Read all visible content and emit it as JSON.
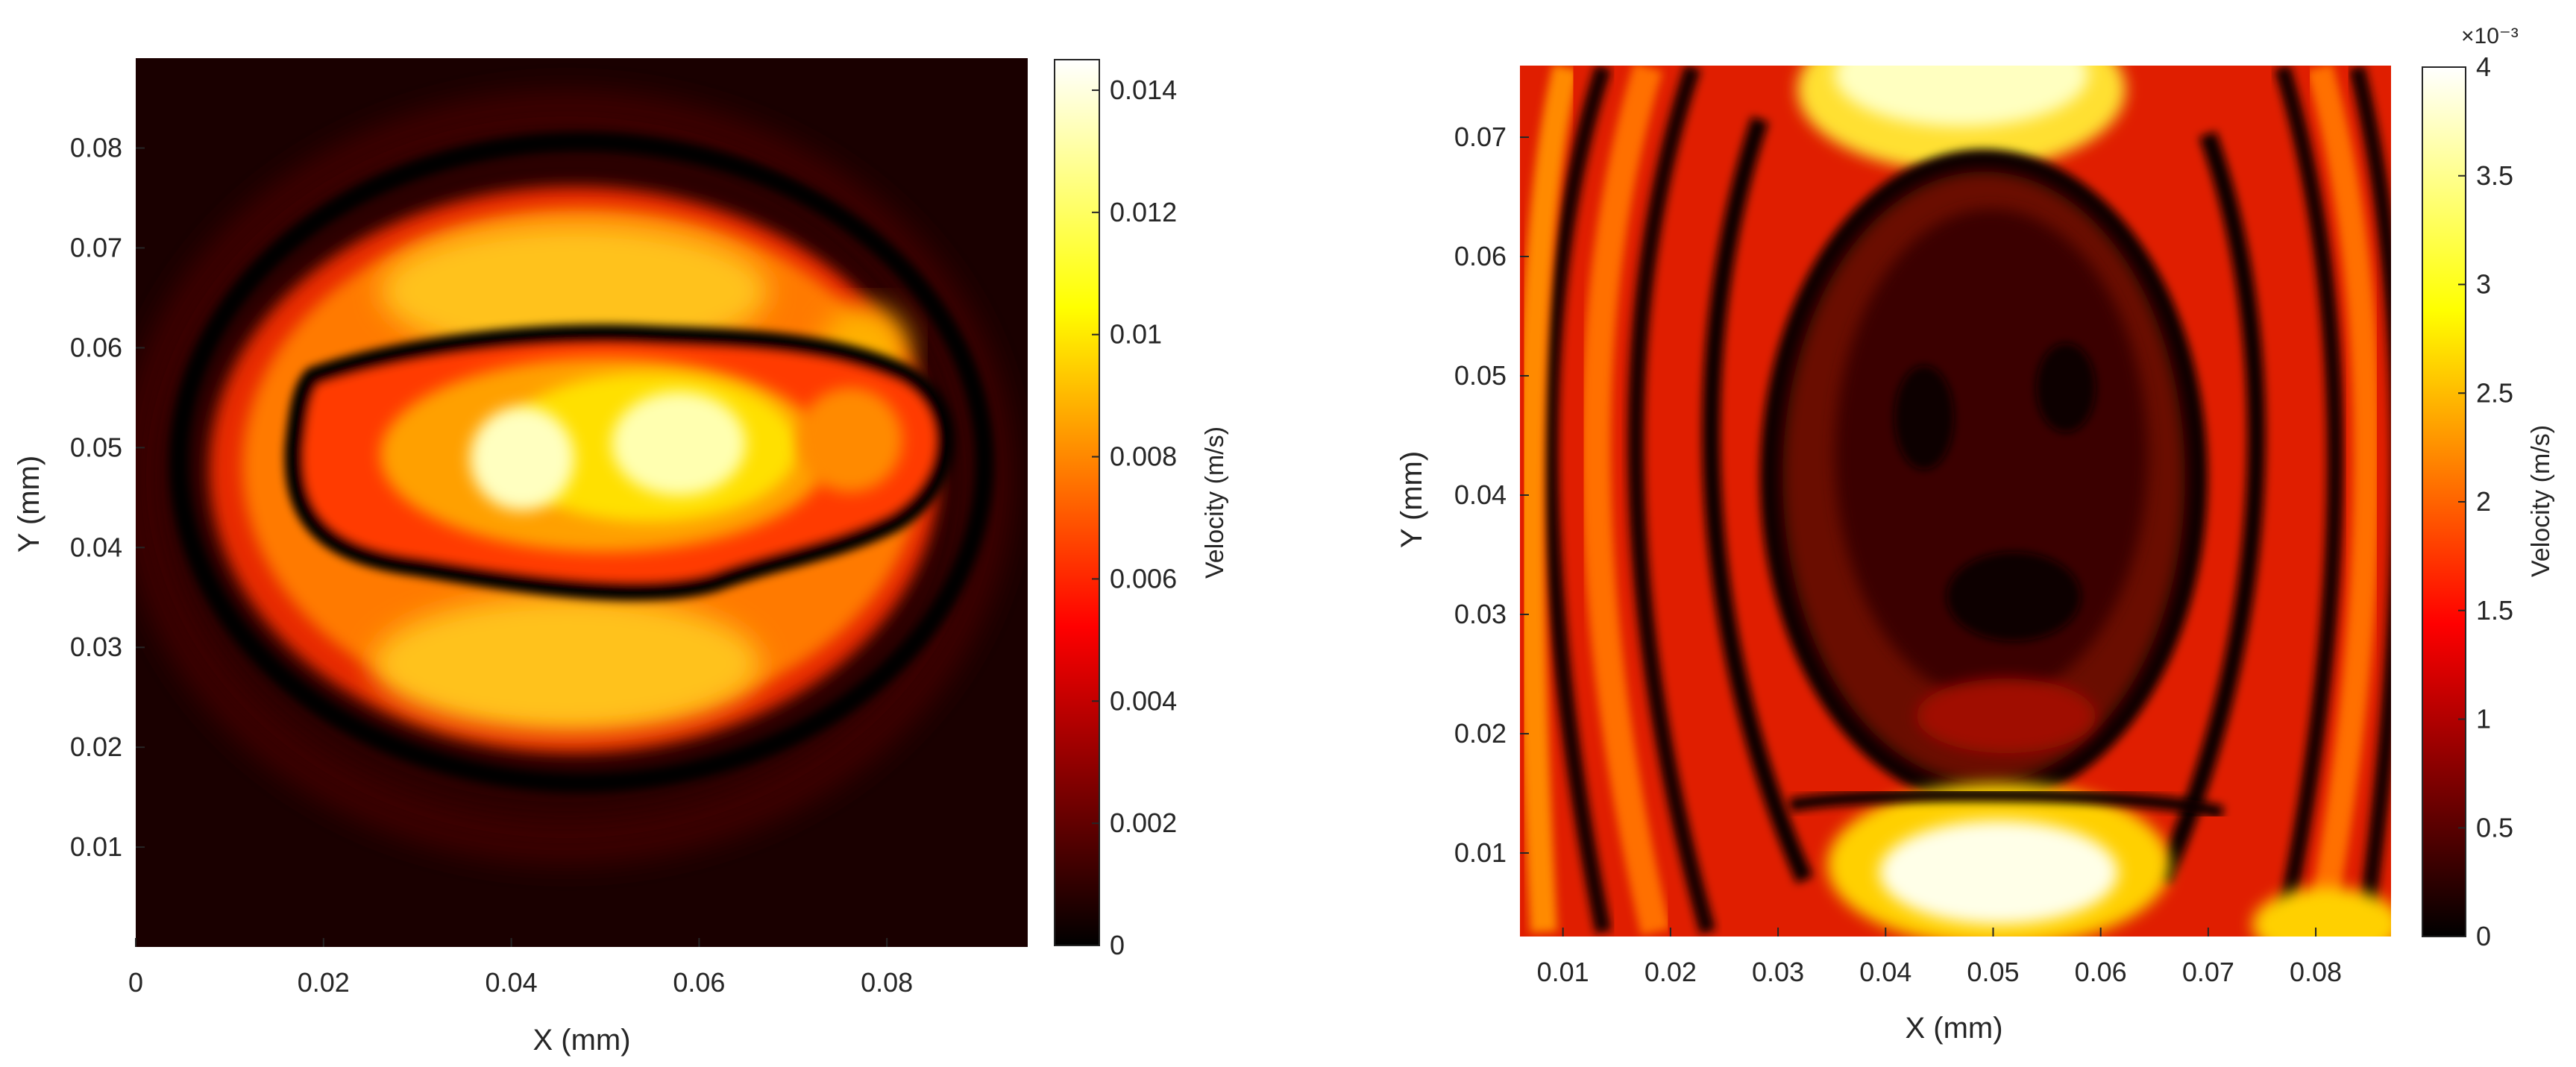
{
  "colormap": "hot",
  "chart_data": [
    {
      "type": "heatmap",
      "title": "",
      "xlabel": "X (mm)",
      "ylabel": "Y (mm)",
      "xlim": [
        0,
        0.095
      ],
      "ylim": [
        0,
        0.089
      ],
      "xticks": [
        "0",
        "0.02",
        "0.04",
        "0.06",
        "0.08"
      ],
      "yticks": [
        "0.01",
        "0.02",
        "0.03",
        "0.04",
        "0.05",
        "0.06",
        "0.07",
        "0.08"
      ],
      "colorbar": {
        "label": "Velocity (m/s)",
        "range": [
          0,
          0.0145
        ],
        "ticks": [
          "0",
          "0.002",
          "0.004",
          "0.006",
          "0.008",
          "0.01",
          "0.012",
          "0.014"
        ],
        "exponent_label": ""
      },
      "description": "Elliptical vibration mode: outer bright ring and inner bright elongated lobe separated by dark nodal line; peak velocity ~0.0145 m/s near center (x 0.04-0.06 mm, y 0.05 mm)"
    },
    {
      "type": "heatmap",
      "title": "",
      "xlabel": "X (mm)",
      "ylabel": "Y (mm)",
      "xlim": [
        0.006,
        0.087
      ],
      "ylim": [
        0.003,
        0.076
      ],
      "xticks": [
        "0.01",
        "0.02",
        "0.03",
        "0.04",
        "0.05",
        "0.06",
        "0.07",
        "0.08"
      ],
      "yticks": [
        "0.01",
        "0.02",
        "0.03",
        "0.04",
        "0.05",
        "0.06",
        "0.07"
      ],
      "colorbar": {
        "label": "Velocity (m/s)",
        "range": [
          0,
          4
        ],
        "ticks": [
          "0",
          "0.5",
          "1",
          "1.5",
          "2",
          "2.5",
          "3",
          "3.5",
          "4"
        ],
        "exponent_label": "×10⁻³"
      },
      "description": "Higher-order mode: dark central oval with bright lobes at top and bottom, several curved bright/dark arcs on left and right sides; peak ~4e-3 m/s"
    }
  ]
}
